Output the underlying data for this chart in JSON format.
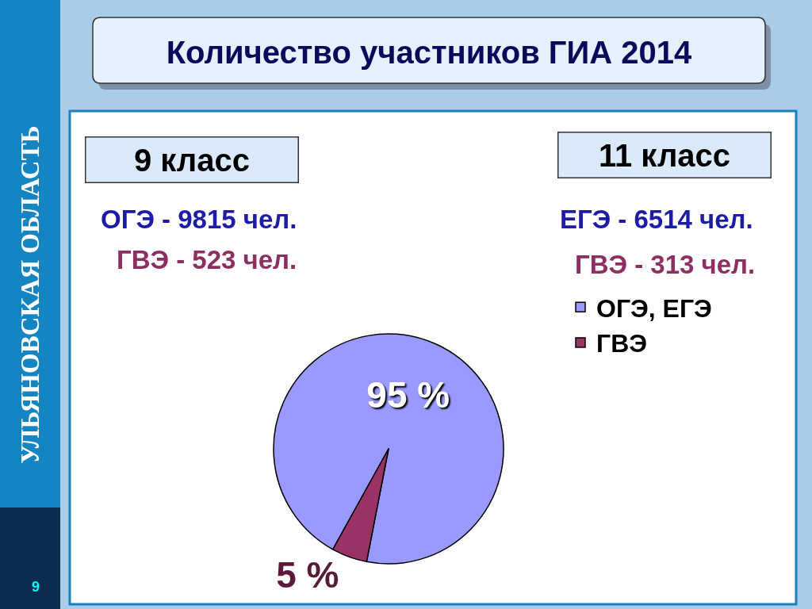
{
  "chart_data": {
    "type": "pie",
    "title": "Количество участников ГИА 2014",
    "categories": [
      "ОГЭ, ЕГЭ",
      "ГВЭ"
    ],
    "values": [
      95,
      5
    ],
    "colors": [
      "#9999ff",
      "#993366"
    ],
    "value_labels": [
      "95 %",
      "5 %"
    ],
    "legend": "right",
    "annotations": [
      "9 класс",
      "11 класс",
      "ОГЭ - 9815 чел.",
      "ГВЭ - 523 чел.",
      "ЕГЭ - 6514 чел.",
      "ГВЭ - 313 чел.",
      "УЛЬЯНОВСКАЯ ОБЛАСТЬ",
      "9"
    ]
  }
}
